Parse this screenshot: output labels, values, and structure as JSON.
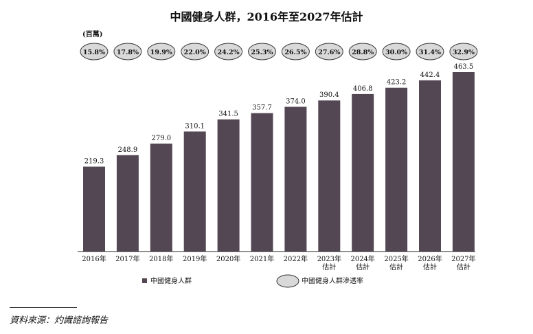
{
  "chart_data": {
    "type": "bar",
    "title": "中國健身人群，2016年至2027年估計",
    "unit_label": "(百萬)",
    "categories": [
      "2016年",
      "2017年",
      "2018年",
      "2019年",
      "2020年",
      "2021年",
      "2022年",
      "2023年\n估計",
      "2024年\n估計",
      "2025年\n估計",
      "2026年\n估計",
      "2027年\n估計"
    ],
    "values": [
      219.3,
      248.9,
      279.0,
      310.1,
      341.5,
      357.7,
      374.0,
      390.4,
      406.8,
      423.2,
      442.4,
      463.5
    ],
    "value_labels": [
      "219.3",
      "248.9",
      "279.0",
      "310.1",
      "341.5",
      "357.7",
      "374.0",
      "390.4",
      "406.8",
      "423.2",
      "442.4",
      "463.5"
    ],
    "penetration_rates": [
      "15.8%",
      "17.8%",
      "19.9%",
      "22.0%",
      "24.2%",
      "25.3%",
      "26.5%",
      "27.6%",
      "28.8%",
      "30.0%",
      "31.4%",
      "32.9%"
    ],
    "ylim": [
      0,
      463.5
    ],
    "legend": [
      {
        "label": "中國健身人群",
        "marker": "square",
        "color": "#544754"
      },
      {
        "label": "中國健身人群滲透率",
        "marker": "ellipse",
        "color": "#d9d9d9"
      }
    ],
    "colors": {
      "bar": "#544754",
      "ellipse_fill": "#d9d9d9",
      "ellipse_stroke": "#333333"
    }
  },
  "source": "資料來源：灼識諮詢報告"
}
